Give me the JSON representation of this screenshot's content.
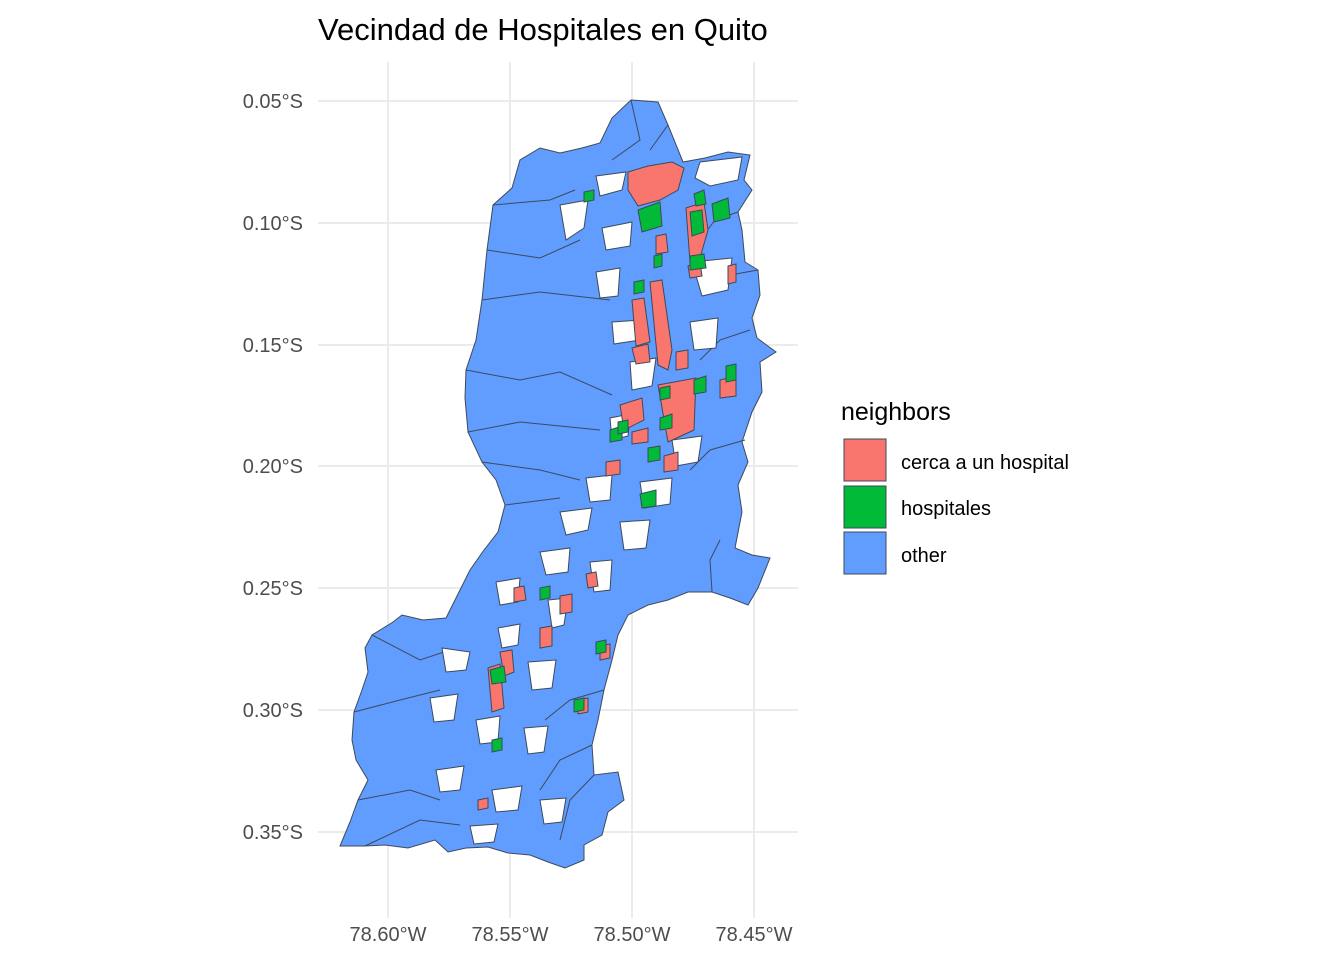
{
  "title": "Vecindad de Hospitales en Quito",
  "map": {
    "x_ticks": [
      "78.60°W",
      "78.55°W",
      "78.50°W",
      "78.45°W"
    ],
    "y_ticks": [
      "0.05°S",
      "0.10°S",
      "0.15°S",
      "0.20°S",
      "0.25°S",
      "0.30°S",
      "0.35°S"
    ],
    "grid": true
  },
  "legend": {
    "title": "neighbors",
    "position": "right",
    "items": [
      {
        "label": "cerca a un hospital",
        "color": "#F8766D"
      },
      {
        "label": "hospitales",
        "color": "#00BA38"
      },
      {
        "label": "other",
        "color": "#619CFF"
      }
    ]
  },
  "colors": {
    "border": "#3d4a5c",
    "background": "#ffffff",
    "grid": "#ebebeb"
  }
}
